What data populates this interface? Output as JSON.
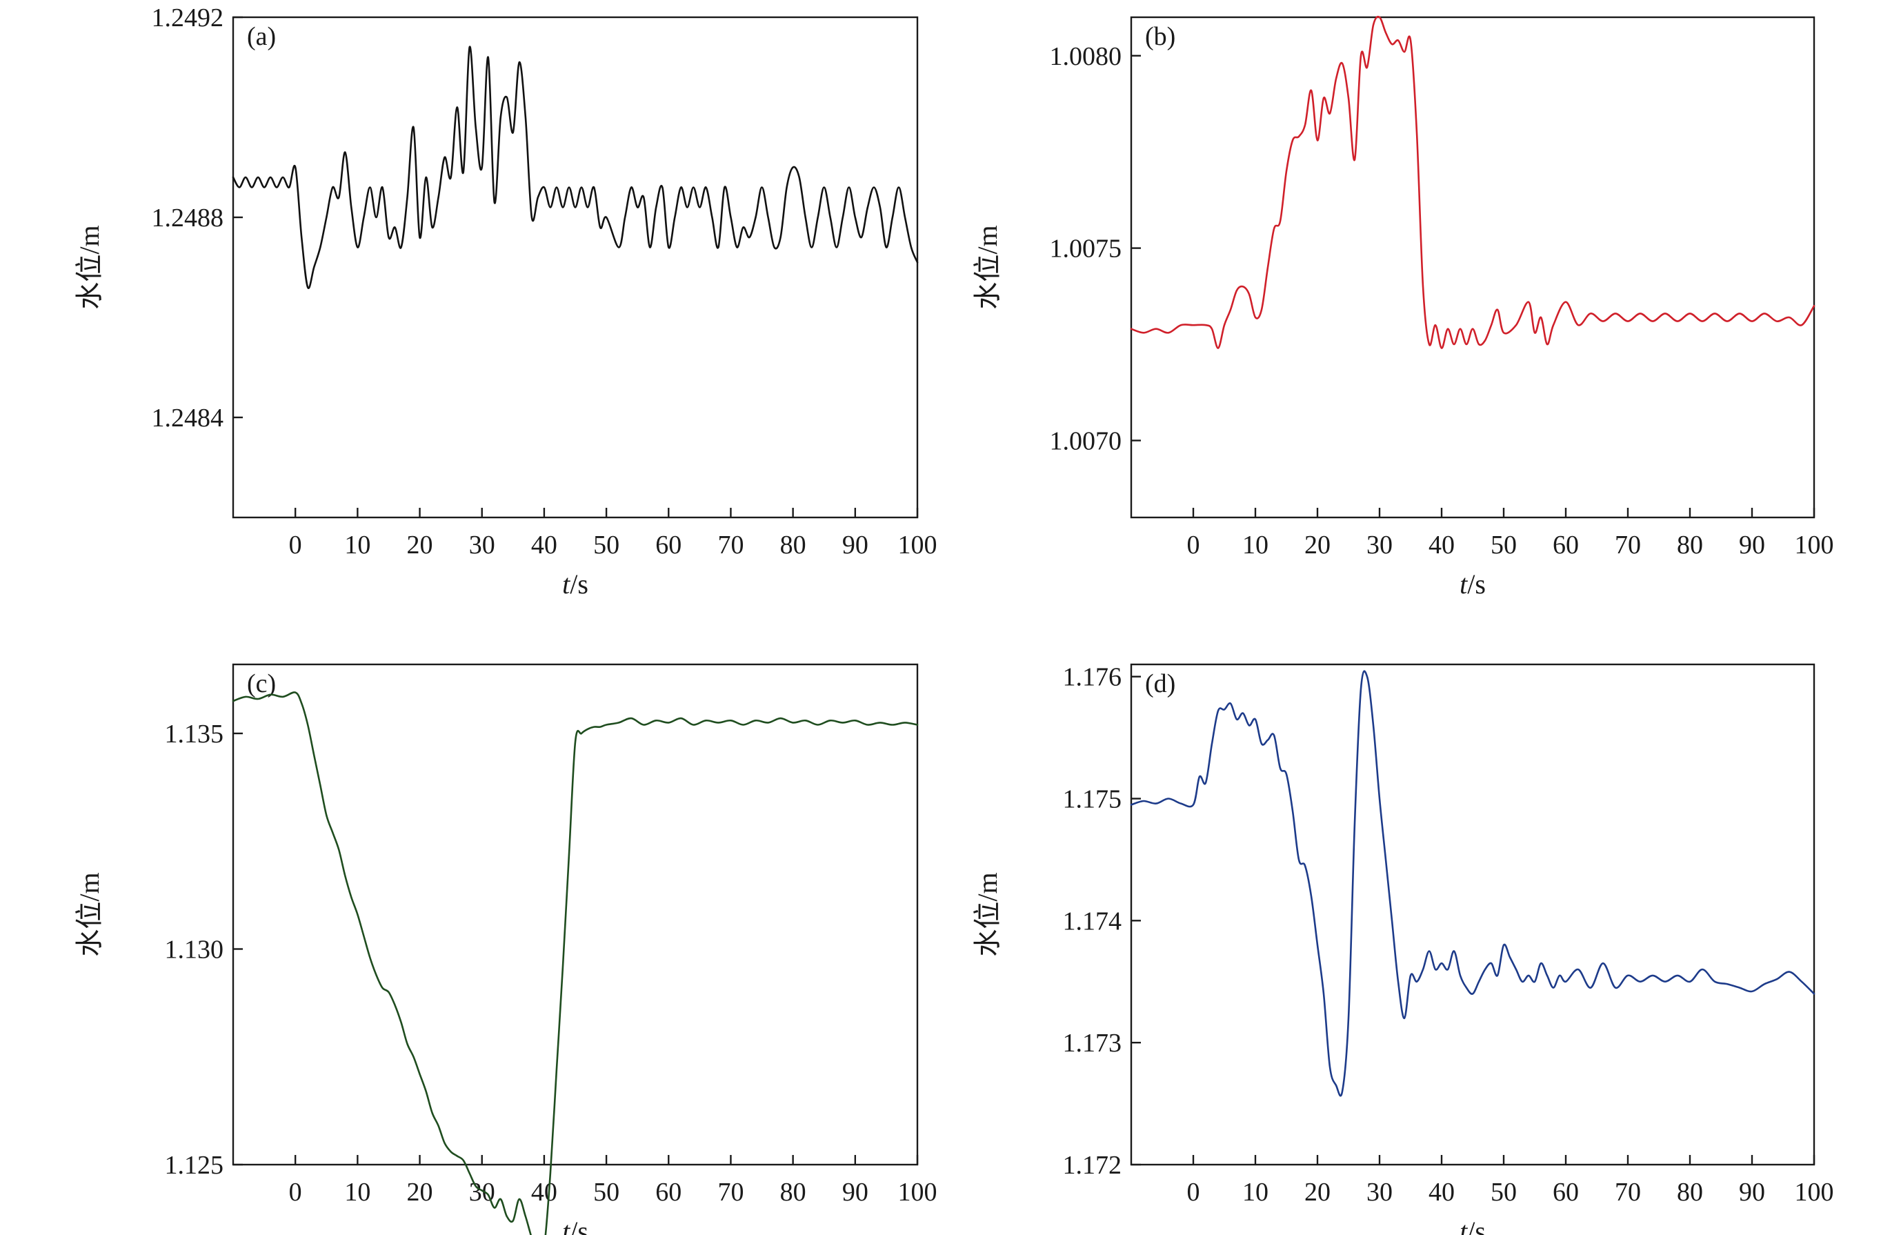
{
  "chart_data": [
    {
      "type": "line",
      "panel_label": "(a)",
      "xlabel_var": "t",
      "xlabel_unit": "/s",
      "ylabel": "水位/m",
      "xlim": [
        -10,
        100
      ],
      "ylim": [
        1.2482,
        1.2492
      ],
      "xticks": [
        0,
        10,
        20,
        30,
        40,
        50,
        60,
        70,
        80,
        90,
        100
      ],
      "yticks": [
        1.2484,
        1.2488,
        1.2492
      ],
      "ytick_labels": [
        "1.2484",
        "1.2488",
        "1.2492"
      ],
      "color": "#111111",
      "series": [
        {
          "x": [
            -10,
            -9,
            -8,
            -7,
            -6,
            -5,
            -4,
            -3,
            -2,
            -1,
            0,
            1,
            2,
            3,
            4,
            5,
            6,
            7,
            8,
            9,
            10,
            11,
            12,
            13,
            14,
            15,
            16,
            17,
            18,
            19,
            20,
            21,
            22,
            23,
            24,
            25,
            26,
            27,
            28,
            29,
            30,
            31,
            32,
            33,
            34,
            35,
            36,
            37,
            38,
            39,
            40,
            41,
            42,
            43,
            44,
            45,
            46,
            47,
            48,
            49,
            50,
            52,
            53,
            54,
            55,
            56,
            57,
            58,
            59,
            60,
            61,
            62,
            63,
            64,
            65,
            66,
            67,
            68,
            69,
            70,
            71,
            72,
            73,
            74,
            75,
            76,
            77,
            78,
            79,
            80,
            81,
            82,
            83,
            84,
            85,
            86,
            87,
            88,
            89,
            90,
            91,
            92,
            93,
            94,
            95,
            96,
            97,
            98,
            99,
            100
          ],
          "y": [
            1.24888,
            1.24886,
            1.24888,
            1.24886,
            1.24888,
            1.24886,
            1.24888,
            1.24886,
            1.24888,
            1.24886,
            1.2489,
            1.24876,
            1.24866,
            1.2487,
            1.24874,
            1.2488,
            1.24886,
            1.24884,
            1.24893,
            1.24882,
            1.24874,
            1.2488,
            1.24886,
            1.2488,
            1.24886,
            1.24876,
            1.24878,
            1.24874,
            1.24884,
            1.24898,
            1.24876,
            1.24888,
            1.24878,
            1.24884,
            1.24892,
            1.24888,
            1.24902,
            1.24889,
            1.24914,
            1.24898,
            1.2489,
            1.24912,
            1.24883,
            1.249,
            1.24904,
            1.24897,
            1.24911,
            1.249,
            1.2488,
            1.24884,
            1.24886,
            1.24882,
            1.24886,
            1.24882,
            1.24886,
            1.24882,
            1.24886,
            1.24882,
            1.24886,
            1.24878,
            1.2488,
            1.24874,
            1.2488,
            1.24886,
            1.24882,
            1.24884,
            1.24874,
            1.24882,
            1.24886,
            1.24874,
            1.2488,
            1.24886,
            1.24882,
            1.24886,
            1.24882,
            1.24886,
            1.2488,
            1.24874,
            1.24886,
            1.2488,
            1.24874,
            1.24878,
            1.24876,
            1.2488,
            1.24886,
            1.2488,
            1.24874,
            1.24876,
            1.24886,
            1.2489,
            1.24888,
            1.2488,
            1.24874,
            1.2488,
            1.24886,
            1.2488,
            1.24874,
            1.2488,
            1.24886,
            1.2488,
            1.24876,
            1.24882,
            1.24886,
            1.24882,
            1.24874,
            1.2488,
            1.24886,
            1.2488,
            1.24874,
            1.24871
          ]
        }
      ]
    },
    {
      "type": "line",
      "panel_label": "(b)",
      "xlabel_var": "t",
      "xlabel_unit": "/s",
      "ylabel": "水位/m",
      "xlim": [
        -10,
        100
      ],
      "ylim": [
        1.0068,
        1.0081
      ],
      "xticks": [
        0,
        10,
        20,
        30,
        40,
        50,
        60,
        70,
        80,
        90,
        100
      ],
      "yticks": [
        1.007,
        1.0075,
        1.008
      ],
      "ytick_labels": [
        "1.0070",
        "1.0075",
        "1.0080"
      ],
      "color": "#d0202a",
      "series": [
        {
          "x": [
            -10,
            -8,
            -6,
            -4,
            -2,
            0,
            2,
            3,
            4,
            5,
            6,
            7,
            8,
            9,
            10,
            11,
            12,
            13,
            14,
            15,
            16,
            17,
            18,
            19,
            20,
            21,
            22,
            23,
            24,
            25,
            26,
            27,
            28,
            29,
            30,
            31,
            32,
            33,
            34,
            35,
            36,
            37,
            38,
            39,
            40,
            41,
            42,
            43,
            44,
            45,
            46,
            47,
            48,
            49,
            50,
            52,
            54,
            55,
            56,
            57,
            58,
            60,
            62,
            64,
            66,
            68,
            70,
            72,
            74,
            76,
            78,
            80,
            82,
            84,
            86,
            88,
            90,
            92,
            94,
            96,
            98,
            100
          ],
          "y": [
            1.00729,
            1.00728,
            1.00729,
            1.00728,
            1.0073,
            1.0073,
            1.0073,
            1.00729,
            1.00724,
            1.0073,
            1.00734,
            1.00739,
            1.0074,
            1.00738,
            1.00732,
            1.00734,
            1.00745,
            1.00755,
            1.00757,
            1.0077,
            1.00778,
            1.00779,
            1.00782,
            1.00791,
            1.00778,
            1.00789,
            1.00785,
            1.00794,
            1.00798,
            1.00789,
            1.00773,
            1.008,
            1.00797,
            1.00808,
            1.0081,
            1.00806,
            1.00803,
            1.00804,
            1.00801,
            1.00804,
            1.0078,
            1.0074,
            1.00725,
            1.0073,
            1.00724,
            1.00729,
            1.00725,
            1.00729,
            1.00725,
            1.00729,
            1.00725,
            1.00726,
            1.0073,
            1.00734,
            1.00728,
            1.0073,
            1.00736,
            1.00728,
            1.00732,
            1.00725,
            1.0073,
            1.00736,
            1.0073,
            1.00733,
            1.00731,
            1.00733,
            1.00731,
            1.00733,
            1.00731,
            1.00733,
            1.00731,
            1.00733,
            1.00731,
            1.00733,
            1.00731,
            1.00733,
            1.00731,
            1.00733,
            1.00731,
            1.00732,
            1.0073,
            1.00735
          ]
        }
      ]
    },
    {
      "type": "line",
      "panel_label": "(c)",
      "xlabel_var": "t",
      "xlabel_unit": "/s",
      "ylabel": "水位/m",
      "xlim": [
        -10,
        100
      ],
      "ylim": [
        1.125,
        1.1366
      ],
      "xticks": [
        0,
        10,
        20,
        30,
        40,
        50,
        60,
        70,
        80,
        90,
        100
      ],
      "yticks": [
        1.125,
        1.13,
        1.135
      ],
      "ytick_labels": [
        "1.125",
        "1.130",
        "1.135"
      ],
      "color": "#1f4d1f",
      "series": [
        {
          "x": [
            -10,
            -8,
            -6,
            -4,
            -2,
            0,
            1,
            2,
            3,
            4,
            5,
            6,
            7,
            8,
            9,
            10,
            11,
            12,
            13,
            14,
            15,
            16,
            17,
            18,
            19,
            20,
            21,
            22,
            23,
            24,
            25,
            26,
            27,
            28,
            29,
            30,
            31,
            32,
            33,
            34,
            35,
            36,
            37,
            38,
            39,
            40,
            41,
            42,
            43,
            44,
            45,
            46,
            47,
            48,
            49,
            50,
            52,
            54,
            56,
            58,
            60,
            62,
            64,
            66,
            68,
            70,
            72,
            74,
            76,
            78,
            80,
            82,
            84,
            86,
            88,
            90,
            92,
            94,
            96,
            98,
            100
          ],
          "y": [
            1.13575,
            1.13585,
            1.1358,
            1.1359,
            1.13585,
            1.13595,
            1.1357,
            1.1352,
            1.1345,
            1.1338,
            1.1331,
            1.1327,
            1.1323,
            1.1317,
            1.1312,
            1.1308,
            1.1303,
            1.1298,
            1.1294,
            1.1291,
            1.129,
            1.1287,
            1.1283,
            1.1278,
            1.1275,
            1.1271,
            1.1267,
            1.1262,
            1.1259,
            1.1255,
            1.1253,
            1.1252,
            1.1251,
            1.1248,
            1.1245,
            1.1244,
            1.1243,
            1.124,
            1.1242,
            1.1238,
            1.1237,
            1.1242,
            1.1238,
            1.1233,
            1.1229,
            1.1231,
            1.1248,
            1.1272,
            1.1296,
            1.1322,
            1.1348,
            1.135,
            1.1351,
            1.13515,
            1.13515,
            1.1352,
            1.13525,
            1.13535,
            1.1352,
            1.1353,
            1.13525,
            1.13535,
            1.1352,
            1.1353,
            1.13525,
            1.1353,
            1.1352,
            1.1353,
            1.13525,
            1.13535,
            1.13525,
            1.1353,
            1.1352,
            1.1353,
            1.13525,
            1.1353,
            1.1352,
            1.13525,
            1.1352,
            1.13525,
            1.1352
          ]
        }
      ]
    },
    {
      "type": "line",
      "panel_label": "(d)",
      "xlabel_var": "t",
      "xlabel_unit": "/s",
      "ylabel": "水位/m",
      "xlim": [
        -10,
        100
      ],
      "ylim": [
        1.172,
        1.1761
      ],
      "xticks": [
        0,
        10,
        20,
        30,
        40,
        50,
        60,
        70,
        80,
        90,
        100
      ],
      "yticks": [
        1.172,
        1.173,
        1.174,
        1.175,
        1.176
      ],
      "ytick_labels": [
        "1.172",
        "1.173",
        "1.174",
        "1.175",
        "1.176"
      ],
      "color": "#1d3b8a",
      "series": [
        {
          "x": [
            -10,
            -8,
            -6,
            -4,
            -2,
            0,
            1,
            2,
            3,
            4,
            5,
            6,
            7,
            8,
            9,
            10,
            11,
            12,
            13,
            14,
            15,
            16,
            17,
            18,
            19,
            20,
            21,
            22,
            23,
            24,
            25,
            26,
            27,
            28,
            29,
            30,
            31,
            32,
            33,
            34,
            35,
            36,
            37,
            38,
            39,
            40,
            41,
            42,
            43,
            44,
            45,
            46,
            47,
            48,
            49,
            50,
            51,
            52,
            53,
            54,
            55,
            56,
            57,
            58,
            59,
            60,
            62,
            64,
            66,
            68,
            70,
            72,
            74,
            76,
            78,
            80,
            82,
            84,
            86,
            88,
            90,
            92,
            94,
            96,
            98,
            100
          ],
          "y": [
            1.17495,
            1.17498,
            1.17496,
            1.175,
            1.17496,
            1.17495,
            1.17518,
            1.17513,
            1.17545,
            1.17572,
            1.17573,
            1.17578,
            1.17565,
            1.1757,
            1.1756,
            1.17565,
            1.17545,
            1.17548,
            1.17552,
            1.17525,
            1.1752,
            1.1749,
            1.1745,
            1.17445,
            1.1742,
            1.1738,
            1.1734,
            1.1728,
            1.17265,
            1.1726,
            1.1732,
            1.1748,
            1.1759,
            1.176,
            1.1756,
            1.175,
            1.1745,
            1.174,
            1.1735,
            1.1732,
            1.17355,
            1.1735,
            1.1736,
            1.17375,
            1.1736,
            1.17365,
            1.1736,
            1.17375,
            1.17355,
            1.17345,
            1.1734,
            1.1735,
            1.1736,
            1.17365,
            1.17355,
            1.1738,
            1.1737,
            1.1736,
            1.1735,
            1.17355,
            1.1735,
            1.17365,
            1.17355,
            1.17345,
            1.17355,
            1.1735,
            1.1736,
            1.17345,
            1.17365,
            1.17345,
            1.17355,
            1.1735,
            1.17355,
            1.1735,
            1.17355,
            1.1735,
            1.1736,
            1.1735,
            1.17348,
            1.17345,
            1.17342,
            1.17348,
            1.17352,
            1.17358,
            1.1735,
            1.1734
          ]
        }
      ]
    }
  ]
}
